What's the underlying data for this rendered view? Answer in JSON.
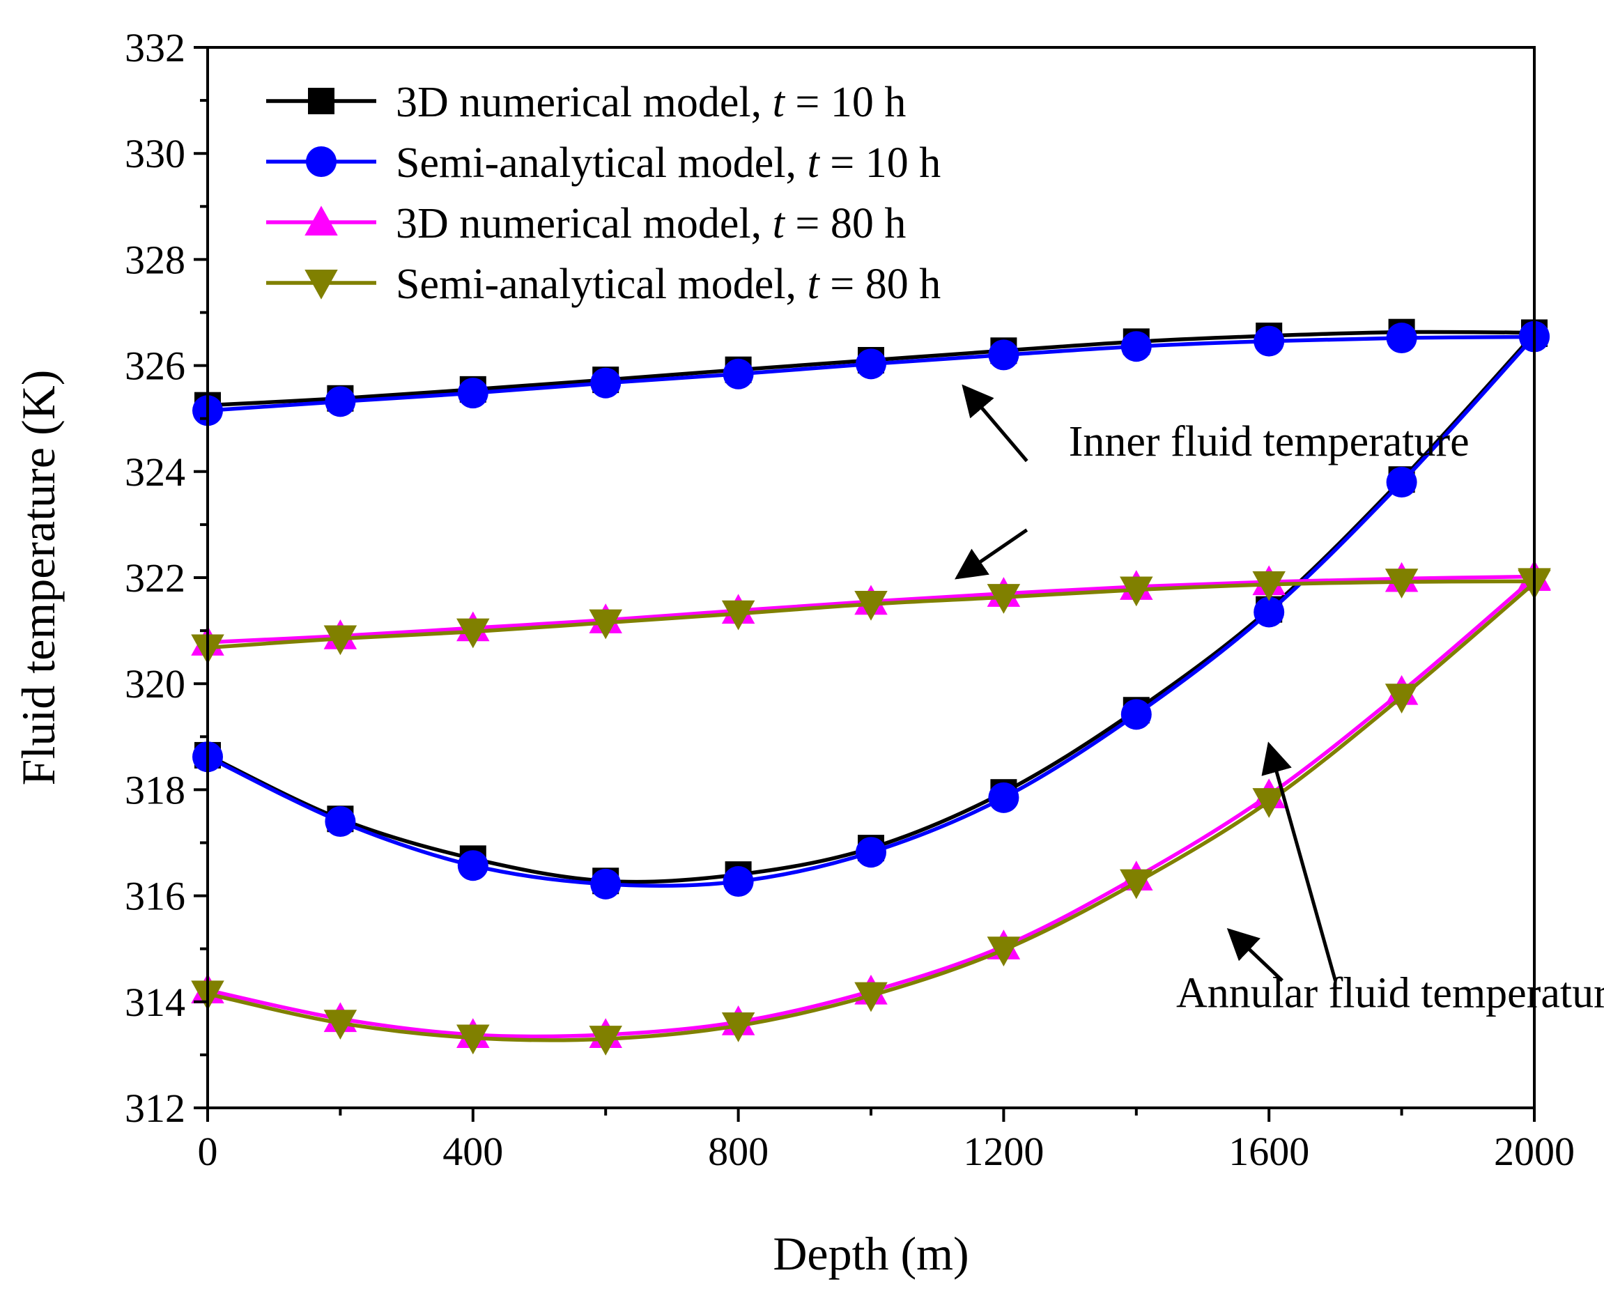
{
  "chart_data": {
    "type": "line",
    "title": "",
    "xlabel": "Depth (m)",
    "ylabel": "Fluid temperature (K)",
    "xlim": [
      0,
      2000
    ],
    "ylim": [
      312,
      332
    ],
    "xticks": [
      0,
      400,
      800,
      1200,
      1600,
      2000
    ],
    "yticks": [
      312,
      314,
      316,
      318,
      320,
      322,
      324,
      326,
      328,
      330,
      332
    ],
    "grid": false,
    "legend_position": "top-left",
    "series": [
      {
        "name": "3D numerical model, t = 10 h",
        "legend_prefix": "3D numerical model, ",
        "legend_var": "t",
        "legend_suffix": " = 10 h",
        "color": "#000000",
        "marker": "square",
        "inner": {
          "x": [
            0,
            200,
            400,
            600,
            800,
            1000,
            1200,
            1400,
            1600,
            1800,
            2000
          ],
          "y": [
            325.25,
            325.38,
            325.55,
            325.73,
            325.92,
            326.1,
            326.28,
            326.45,
            326.56,
            326.63,
            326.62
          ]
        },
        "annular": {
          "x": [
            0,
            200,
            400,
            600,
            800,
            1000,
            1200,
            1400,
            1600,
            1800,
            2000
          ],
          "y": [
            318.65,
            317.45,
            316.7,
            316.28,
            316.4,
            316.9,
            317.95,
            319.5,
            321.4,
            323.85,
            326.6
          ]
        }
      },
      {
        "name": "Semi-analytical model, t = 10 h",
        "legend_prefix": "Semi-analytical model, ",
        "legend_var": "t",
        "legend_suffix": " = 10 h",
        "color": "#0000ff",
        "marker": "circle",
        "inner": {
          "x": [
            0,
            200,
            400,
            600,
            800,
            1000,
            1200,
            1400,
            1600,
            1800,
            2000
          ],
          "y": [
            325.15,
            325.32,
            325.48,
            325.67,
            325.84,
            326.03,
            326.2,
            326.36,
            326.46,
            326.52,
            326.54
          ]
        },
        "annular": {
          "x": [
            0,
            200,
            400,
            600,
            800,
            1000,
            1200,
            1400,
            1600,
            1800,
            2000
          ],
          "y": [
            318.62,
            317.4,
            316.57,
            316.22,
            316.27,
            316.82,
            317.85,
            319.42,
            321.35,
            323.8,
            326.55
          ]
        }
      },
      {
        "name": "3D numerical model, t = 80 h",
        "legend_prefix": "3D numerical model, ",
        "legend_var": "t",
        "legend_suffix": " = 80 h",
        "color": "#ff00ff",
        "marker": "triangle-up",
        "inner": {
          "x": [
            0,
            200,
            400,
            600,
            800,
            1000,
            1200,
            1400,
            1600,
            1800,
            2000
          ],
          "y": [
            320.78,
            320.9,
            321.05,
            321.2,
            321.38,
            321.55,
            321.7,
            321.83,
            321.92,
            321.98,
            322.02
          ]
        },
        "annular": {
          "x": [
            0,
            200,
            400,
            600,
            800,
            1000,
            1200,
            1400,
            1600,
            1800,
            2000
          ],
          "y": [
            314.22,
            313.68,
            313.38,
            313.38,
            313.62,
            314.2,
            315.05,
            316.35,
            317.9,
            319.85,
            322.0
          ]
        }
      },
      {
        "name": "Semi-analytical model, t = 80 h",
        "legend_prefix": "Semi-analytical model, ",
        "legend_var": "t",
        "legend_suffix": " = 80 h",
        "color": "#808000",
        "marker": "triangle-down",
        "inner": {
          "x": [
            0,
            200,
            400,
            600,
            800,
            1000,
            1200,
            1400,
            1600,
            1800,
            2000
          ],
          "y": [
            320.68,
            320.85,
            320.98,
            321.15,
            321.32,
            321.5,
            321.63,
            321.77,
            321.87,
            321.92,
            321.93
          ]
        },
        "annular": {
          "x": [
            0,
            200,
            400,
            600,
            800,
            1000,
            1200,
            1400,
            1600,
            1800,
            2000
          ],
          "y": [
            314.15,
            313.6,
            313.32,
            313.3,
            313.55,
            314.12,
            314.98,
            316.25,
            317.78,
            319.75,
            321.9
          ]
        }
      }
    ],
    "annotations": [
      {
        "text": "Inner fluid temperature",
        "x": 1600,
        "y": 324.3,
        "anchor": "middle",
        "arrows": [
          {
            "from": [
              1235,
              324.2
            ],
            "to": [
              1140,
              325.6
            ]
          },
          {
            "from": [
              1235,
              322.9
            ],
            "to": [
              1130,
              322.0
            ]
          }
        ]
      },
      {
        "text": "Annular fluid temperature",
        "x": 1800,
        "y": 313.9,
        "anchor": "middle",
        "arrows": [
          {
            "from": [
              1700,
              314.4
            ],
            "to": [
              1600,
              318.85
            ]
          },
          {
            "from": [
              1620,
              314.4
            ],
            "to": [
              1540,
              315.35
            ]
          }
        ]
      }
    ]
  }
}
